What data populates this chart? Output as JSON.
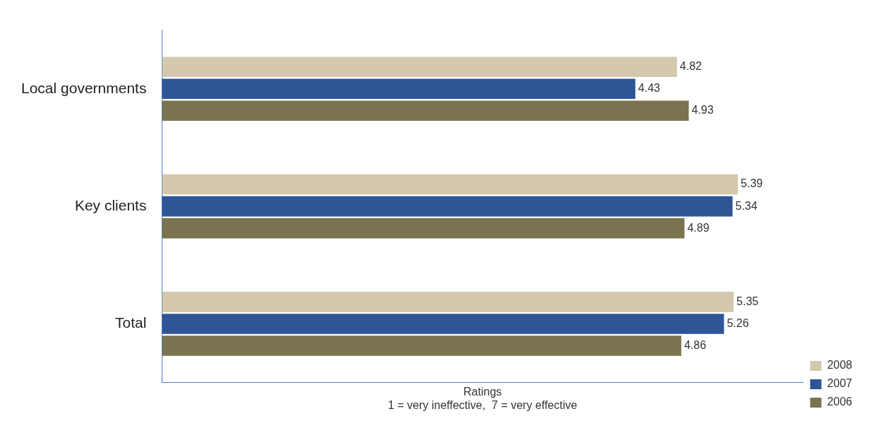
{
  "chart_data": {
    "type": "bar",
    "orientation": "horizontal",
    "categories": [
      "Local governments",
      "Key clients",
      "Total"
    ],
    "series": [
      {
        "name": "2008",
        "color": "#d3c8ad",
        "values": [
          4.82,
          5.39,
          5.35
        ]
      },
      {
        "name": "2007",
        "color": "#2f5597",
        "values": [
          4.43,
          5.34,
          5.26
        ]
      },
      {
        "name": "2006",
        "color": "#7a7350",
        "values": [
          4.93,
          4.89,
          4.86
        ]
      }
    ],
    "tick_labels": "y",
    "data_labels": true,
    "grid": false,
    "legend": "bottom right",
    "xlabel": "Ratings",
    "annotations": [
      "1 = very ineffective,  7 = very effective"
    ]
  }
}
